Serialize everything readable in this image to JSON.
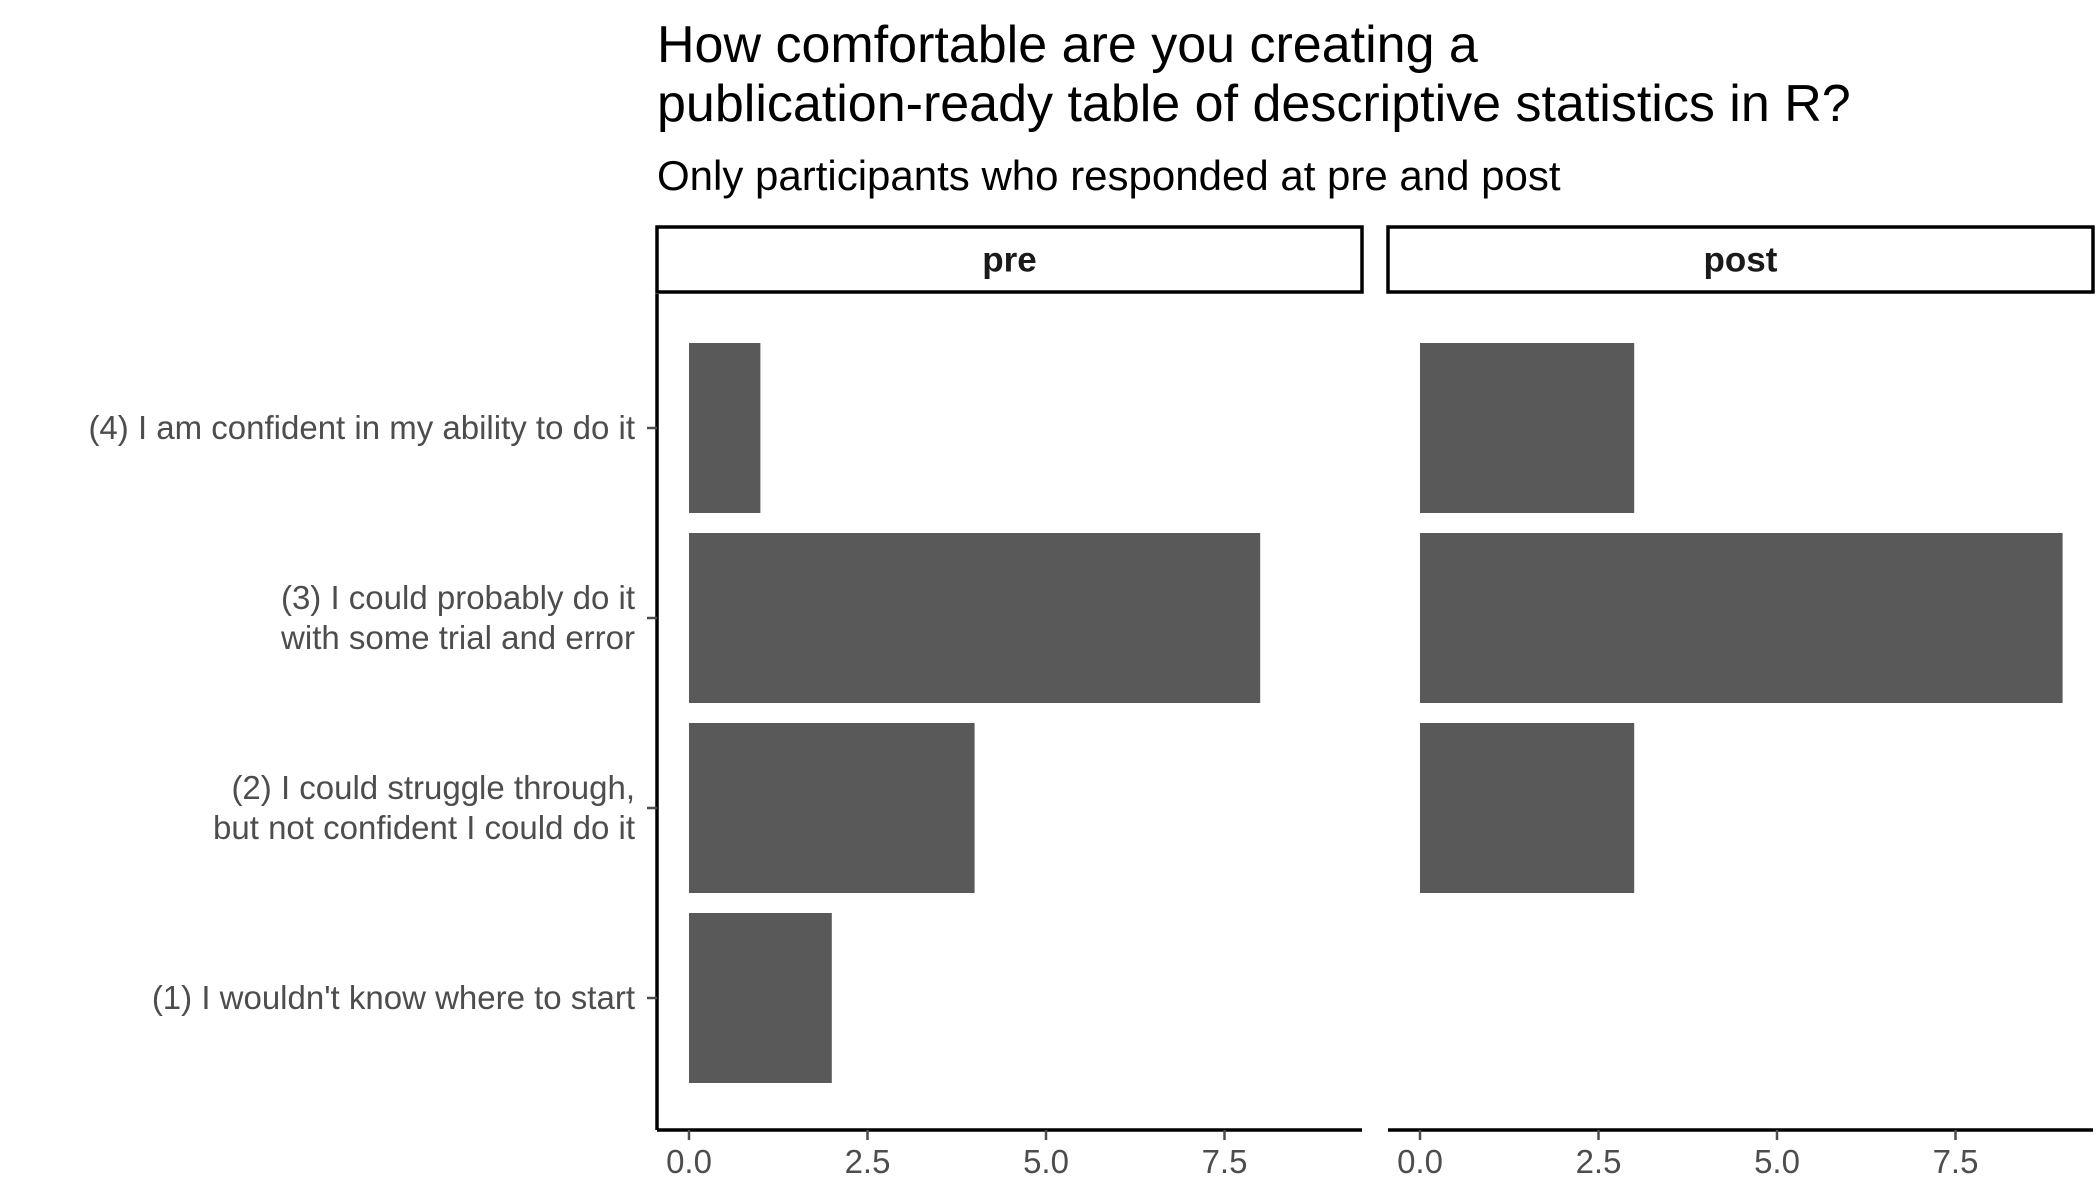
{
  "chart_data": {
    "type": "bar",
    "orientation": "horizontal",
    "title_lines": [
      "How comfortable are you creating a",
      "publication-ready table of descriptive statistics in R?"
    ],
    "subtitle": "Only participants who responded at pre and post",
    "categories": [
      [
        "(4) I am confident in my ability to do it"
      ],
      [
        "(3) I could probably do it",
        "with some trial and error"
      ],
      [
        "(2) I could struggle through,",
        "but not confident I could do it"
      ],
      [
        "(1) I wouldn't know where to start"
      ]
    ],
    "facets": [
      {
        "label": "pre",
        "values": [
          1,
          8,
          4,
          2
        ]
      },
      {
        "label": "post",
        "values": [
          3,
          9,
          3,
          0
        ]
      }
    ],
    "xlim": [
      0,
      9.45
    ],
    "x_ticks": [
      {
        "value": 0,
        "label": "0.0"
      },
      {
        "value": 2.5,
        "label": "2.5"
      },
      {
        "value": 5,
        "label": "5.0"
      },
      {
        "value": 7.5,
        "label": "7.5"
      }
    ],
    "xlabel": "",
    "ylabel": "",
    "grid": false,
    "legend": "none",
    "colors": {
      "bar": "#595959",
      "axis": "#000000",
      "strip_border": "#000000",
      "tick_text": "#4d4d4d"
    }
  }
}
